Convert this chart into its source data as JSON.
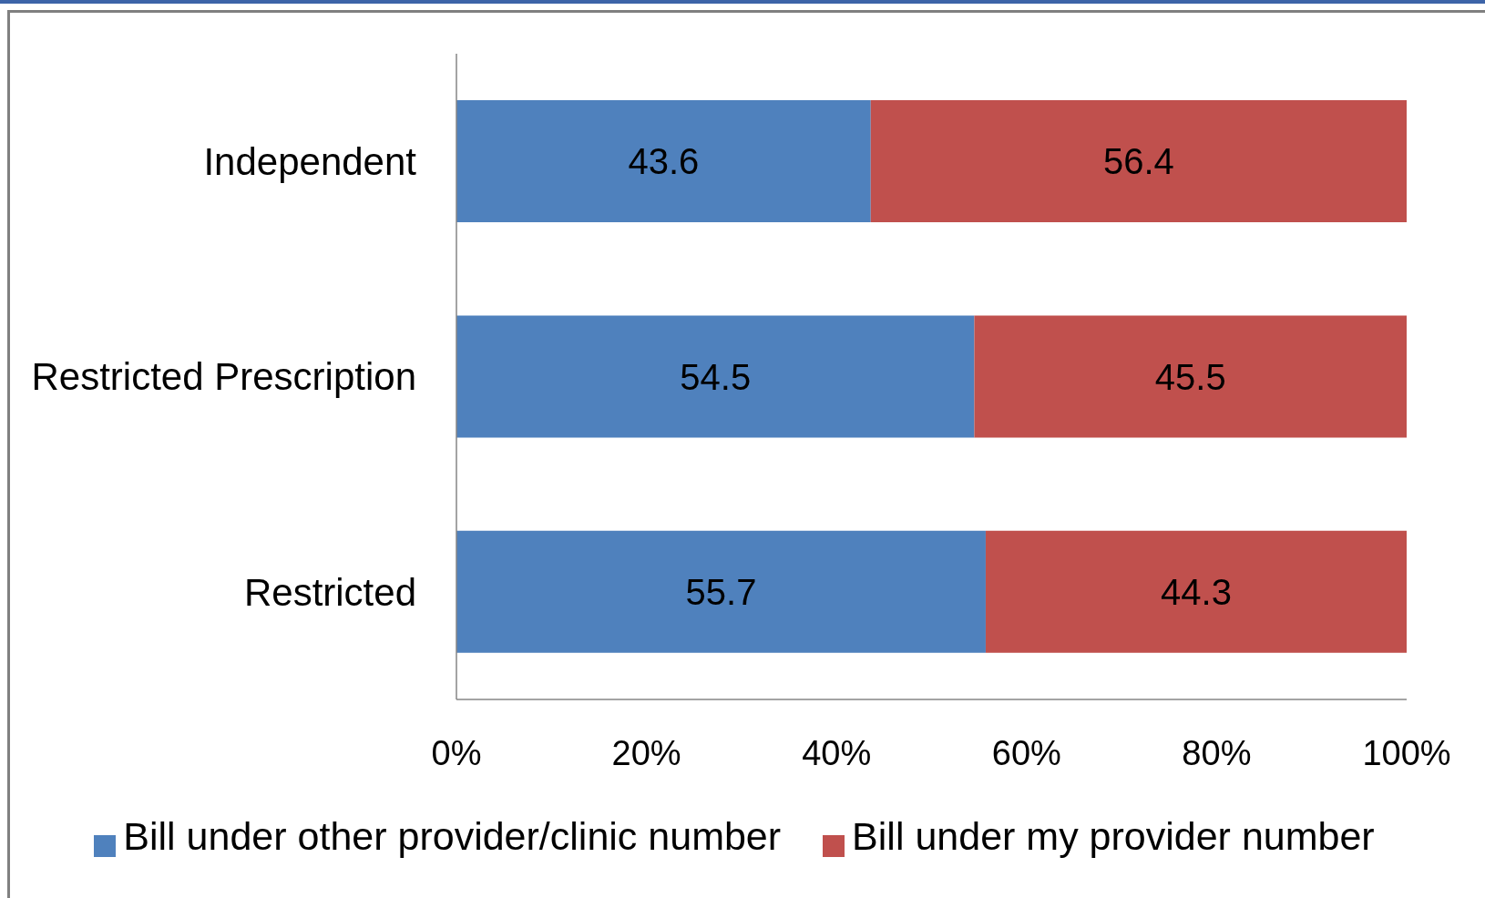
{
  "chart_data": {
    "type": "bar",
    "orientation": "horizontal",
    "stacked": true,
    "categories": [
      "Independent",
      "Restricted Prescription",
      "Restricted"
    ],
    "series": [
      {
        "name": "Bill under other provider/clinic number",
        "color": "#4f81bd",
        "values": [
          43.6,
          54.5,
          55.7
        ]
      },
      {
        "name": "Bill under my provider number",
        "color": "#c0504d",
        "values": [
          56.4,
          45.5,
          44.3
        ]
      }
    ],
    "xlim": [
      0,
      100
    ],
    "xticks": [
      {
        "value": 0,
        "label": "0%"
      },
      {
        "value": 20,
        "label": "20%"
      },
      {
        "value": 40,
        "label": "40%"
      },
      {
        "value": 60,
        "label": "60%"
      },
      {
        "value": 80,
        "label": "80%"
      },
      {
        "value": 100,
        "label": "100%"
      }
    ],
    "data_labels": true,
    "legend": "bottom",
    "grid": false
  }
}
